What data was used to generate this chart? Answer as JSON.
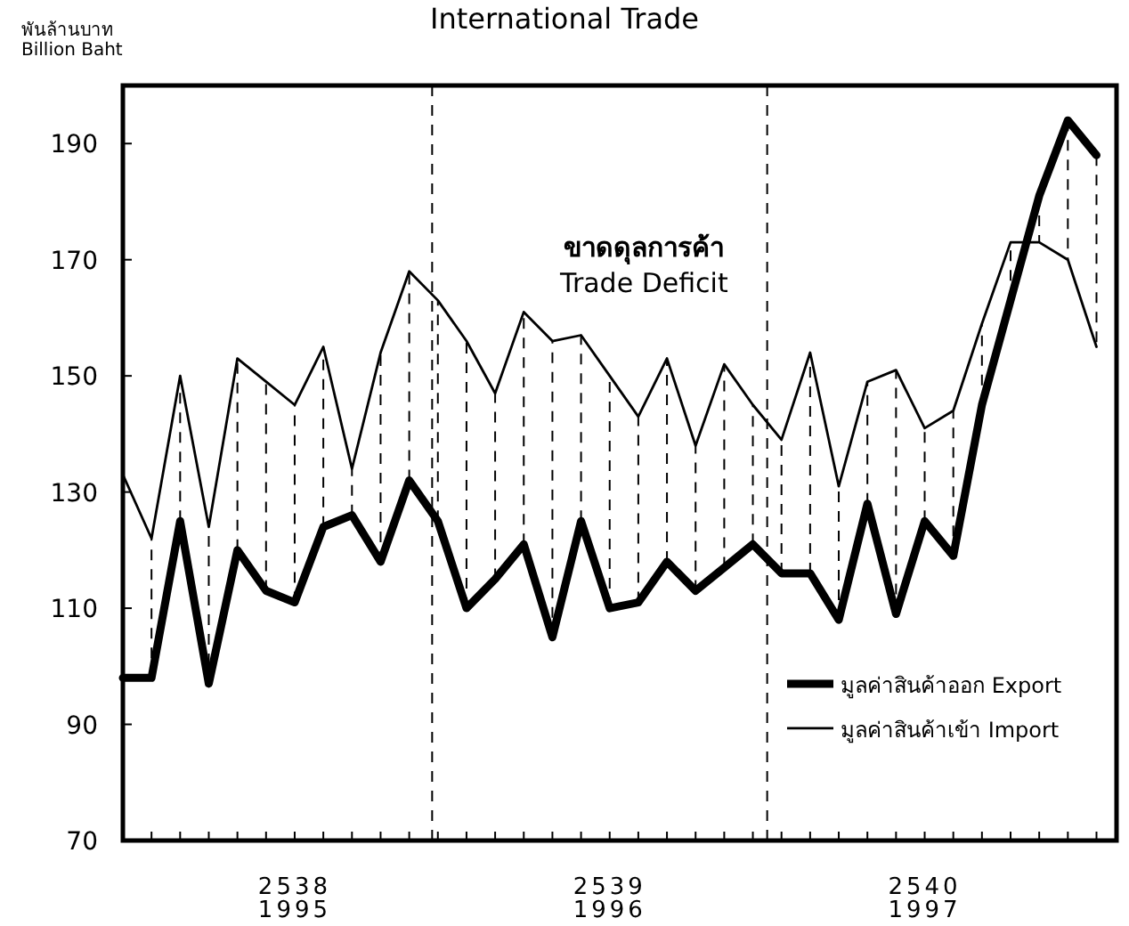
{
  "chart_data": {
    "type": "line",
    "title": "International Trade",
    "ylabel": "พันล้านบาท\nBillion Baht",
    "categories": [
      null,
      null,
      null,
      null,
      null,
      null,
      "2538\n1995",
      null,
      null,
      null,
      null,
      null,
      null,
      null,
      null,
      null,
      null,
      "2539\n1996",
      null,
      null,
      null,
      null,
      null,
      null,
      null,
      null,
      null,
      null,
      "2540\n1997",
      null,
      null,
      null,
      null,
      null,
      null
    ],
    "series": [
      {
        "name": "มูลค่าสินค้าออก Export",
        "color": "#000000",
        "values": [
          98,
          98,
          125,
          97,
          120,
          113,
          111,
          124,
          126,
          118,
          132,
          125,
          110,
          115,
          121,
          105,
          125,
          110,
          111,
          118,
          113,
          117,
          121,
          116,
          116,
          108,
          128,
          109,
          125,
          119,
          145,
          163,
          181,
          194,
          188
        ]
      },
      {
        "name": "มูลค่าสินค้าเข้า Import",
        "color": "#000000",
        "values": [
          133,
          122,
          150,
          124,
          153,
          149,
          145,
          155,
          134,
          154,
          168,
          163,
          156,
          147,
          161,
          156,
          157,
          150,
          143,
          153,
          138,
          152,
          145,
          139,
          154,
          131,
          149,
          151,
          141,
          144,
          159,
          173,
          173,
          170,
          155
        ]
      }
    ],
    "ylim": [
      70,
      200
    ],
    "yticks": [
      70,
      90,
      110,
      130,
      150,
      170,
      190
    ],
    "annotations": [
      "ขาดดุลการค้า\nTrade Deficit"
    ],
    "legend": "right",
    "grid": false,
    "marker": "none",
    "line_style": "solid"
  }
}
